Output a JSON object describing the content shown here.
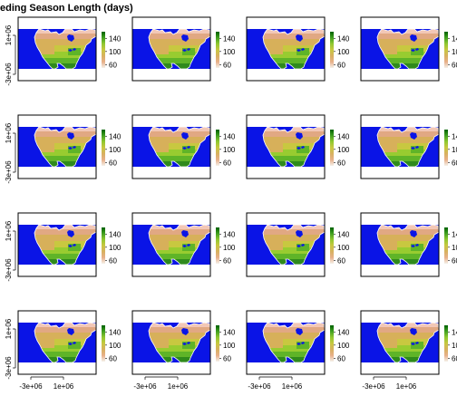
{
  "chart_data": {
    "type": "heatmap",
    "title": "eding Season Length (days)",
    "rows": 4,
    "cols": 4,
    "panel_count": 16,
    "yticks": [
      "-3e+06",
      "1e+06"
    ],
    "xticks": [
      "-3e+06",
      "1e+06"
    ],
    "legend_ticks": [
      "60",
      "100",
      "140"
    ],
    "legend_range": [
      50,
      160
    ],
    "colors": {
      "ocean": "#0a14e6",
      "plot_bg": "#ffffff",
      "legend_ramp": [
        "#f4f1ea",
        "#e8b08a",
        "#d8b060",
        "#c8c840",
        "#90c830",
        "#40a020",
        "#006000"
      ],
      "land_classes": [
        "#f2c7b6",
        "#e1a883",
        "#d7b05a",
        "#c8c840",
        "#98cc30",
        "#5fb428",
        "#2f8a1c"
      ]
    }
  }
}
